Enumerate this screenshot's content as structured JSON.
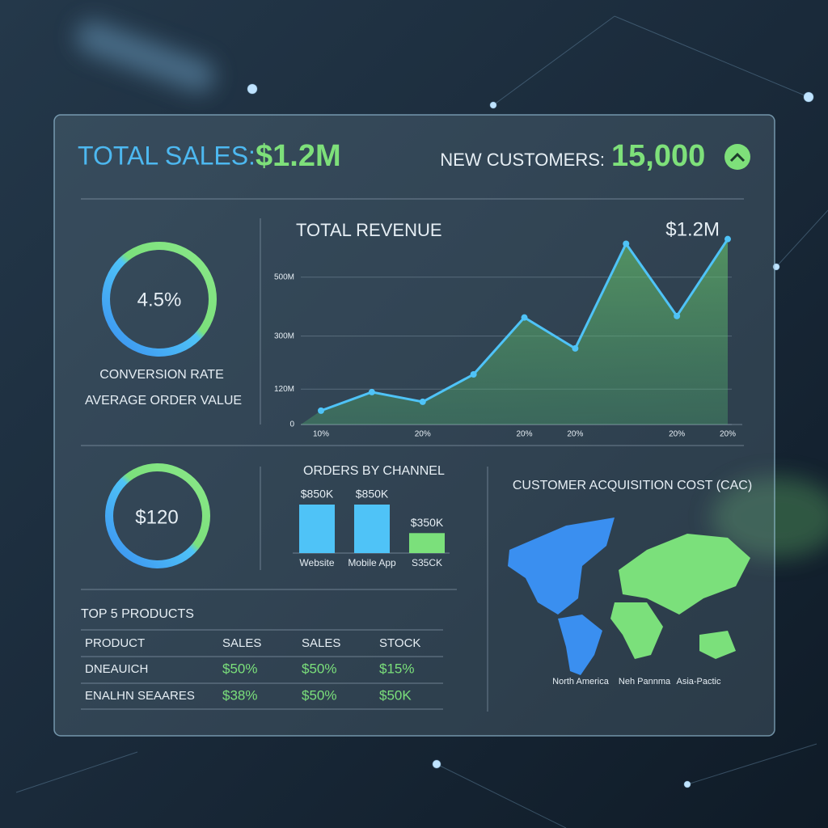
{
  "header": {
    "sales_label": "TOTAL SALES:",
    "sales_value": "$1.2M",
    "customers_label": "NEW CUSTOMERS:",
    "customers_value": "15,000"
  },
  "kpis": {
    "conversion_value": "4.5%",
    "conversion_label": "CONVERSION RATE",
    "aov_label": "AVERAGE ORDER VALUE",
    "aov_value": "$120"
  },
  "chart_data": [
    {
      "type": "line",
      "title": "TOTAL REVENUE",
      "annotation": "$1.2M",
      "categories": [
        "10%",
        null,
        "20%",
        null,
        "20%",
        "20%",
        null,
        "20%",
        "20%"
      ],
      "values": [
        47,
        110,
        77,
        170,
        363,
        258,
        613,
        368,
        629
      ],
      "color": "#4fc3f7",
      "fill": "#6fd36f",
      "ylim": [
        0,
        650
      ],
      "yticks": [
        0,
        {
          "value": 120,
          "label": "120M"
        },
        {
          "value": 300,
          "label": "300M"
        },
        {
          "value": 500,
          "label": "500M"
        }
      ],
      "grid": true
    },
    {
      "type": "bar",
      "title": "ORDERS BY CHANNEL",
      "categories": [
        "Website",
        "Mobile App",
        "S35CK"
      ],
      "values": [
        850,
        850,
        350
      ],
      "value_labels": [
        "$850K",
        "$850K",
        "$350K"
      ],
      "colors": [
        "#4fc3f7",
        "#4fc3f7",
        "#7be07b"
      ]
    }
  ],
  "table": {
    "title": "TOP 5 PRODUCTS",
    "columns": [
      "PRODUCT",
      "SALES",
      "SALES",
      "STOCK"
    ],
    "rows": [
      [
        "DNEAUICH",
        "$50%",
        "$50%",
        "$15%"
      ],
      [
        "ENALHN SEAARES",
        "$38%",
        "$50%",
        "$50K"
      ]
    ]
  },
  "map": {
    "title": "CUSTOMER ACQUISITION COST (CAC)",
    "labels": [
      "North America",
      "Neh Pannma",
      "Asia-Pactic"
    ]
  }
}
